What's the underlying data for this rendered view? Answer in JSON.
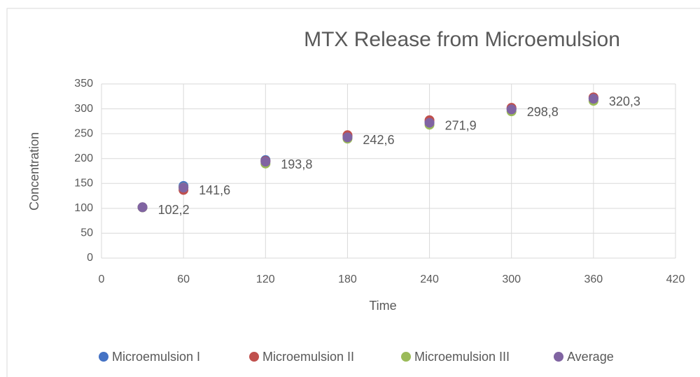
{
  "chart_data": {
    "type": "scatter",
    "title": "MTX Release from Microemulsion",
    "x_label": "Time",
    "y_label": "Concentration",
    "x": [
      30,
      60,
      120,
      180,
      240,
      300,
      360
    ],
    "series": [
      {
        "name": "Microemulsion I",
        "color": "#4472c4",
        "values": [
          102,
          145,
          197,
          245,
          274,
          300,
          321
        ]
      },
      {
        "name": "Microemulsion II",
        "color": "#c0504d",
        "values": [
          102,
          137,
          195,
          247,
          277,
          302,
          323
        ]
      },
      {
        "name": "Microemulsion III",
        "color": "#9bbb59",
        "values": [
          102,
          142,
          190,
          240,
          268,
          295,
          316
        ]
      },
      {
        "name": "Average",
        "color": "#8064a2",
        "values": [
          102.2,
          141.6,
          193.8,
          242.6,
          271.9,
          298.8,
          320.3
        ],
        "value_labels": [
          "102,2",
          "141,6",
          "193,8",
          "242,6",
          "271,9",
          "298,8",
          "320,3"
        ]
      }
    ],
    "xlim": [
      0,
      420
    ],
    "xticks": [
      0,
      60,
      120,
      180,
      240,
      300,
      360,
      420
    ],
    "ylim": [
      0,
      350
    ],
    "yticks": [
      0,
      50,
      100,
      150,
      200,
      250,
      300,
      350
    ],
    "grid": true,
    "legend": "bottom"
  }
}
